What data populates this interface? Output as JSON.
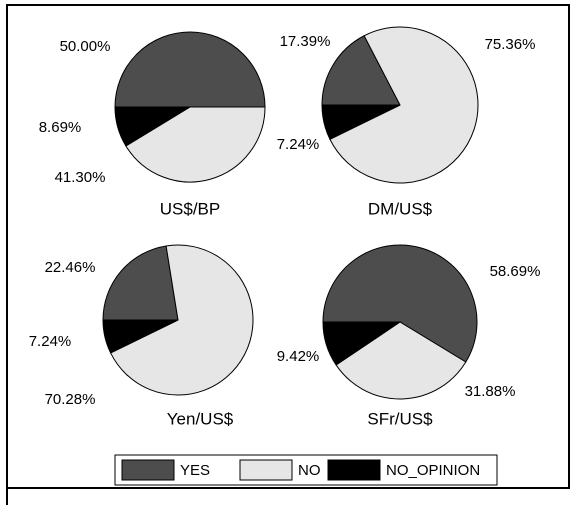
{
  "chart_data": [
    {
      "type": "pie",
      "title": "US$/BP",
      "categories": [
        "YES",
        "NO",
        "NO_OPINION"
      ],
      "values": [
        50.0,
        41.3,
        8.69
      ],
      "value_labels": [
        "50.00%",
        "41.30%",
        "8.69%"
      ],
      "colors": [
        "#4d4d4d",
        "#e6e6e6",
        "#000000"
      ],
      "legend": "bottom"
    },
    {
      "type": "pie",
      "title": "DM/US$",
      "categories": [
        "YES",
        "NO",
        "NO_OPINION"
      ],
      "values": [
        17.39,
        75.36,
        7.24
      ],
      "value_labels": [
        "17.39%",
        "75.36%",
        "7.24%"
      ],
      "colors": [
        "#4d4d4d",
        "#e6e6e6",
        "#000000"
      ]
    },
    {
      "type": "pie",
      "title": "Yen/US$",
      "categories": [
        "YES",
        "NO",
        "NO_OPINION"
      ],
      "values": [
        22.46,
        70.28,
        7.24
      ],
      "value_labels": [
        "22.46%",
        "70.28%",
        "7.24%"
      ],
      "colors": [
        "#4d4d4d",
        "#e6e6e6",
        "#000000"
      ]
    },
    {
      "type": "pie",
      "title": "SFr/US$",
      "categories": [
        "YES",
        "NO",
        "NO_OPINION"
      ],
      "values": [
        58.69,
        31.88,
        9.42
      ],
      "value_labels": [
        "58.69%",
        "31.88%",
        "9.42%"
      ],
      "colors": [
        "#4d4d4d",
        "#e6e6e6",
        "#000000"
      ]
    }
  ]
}
